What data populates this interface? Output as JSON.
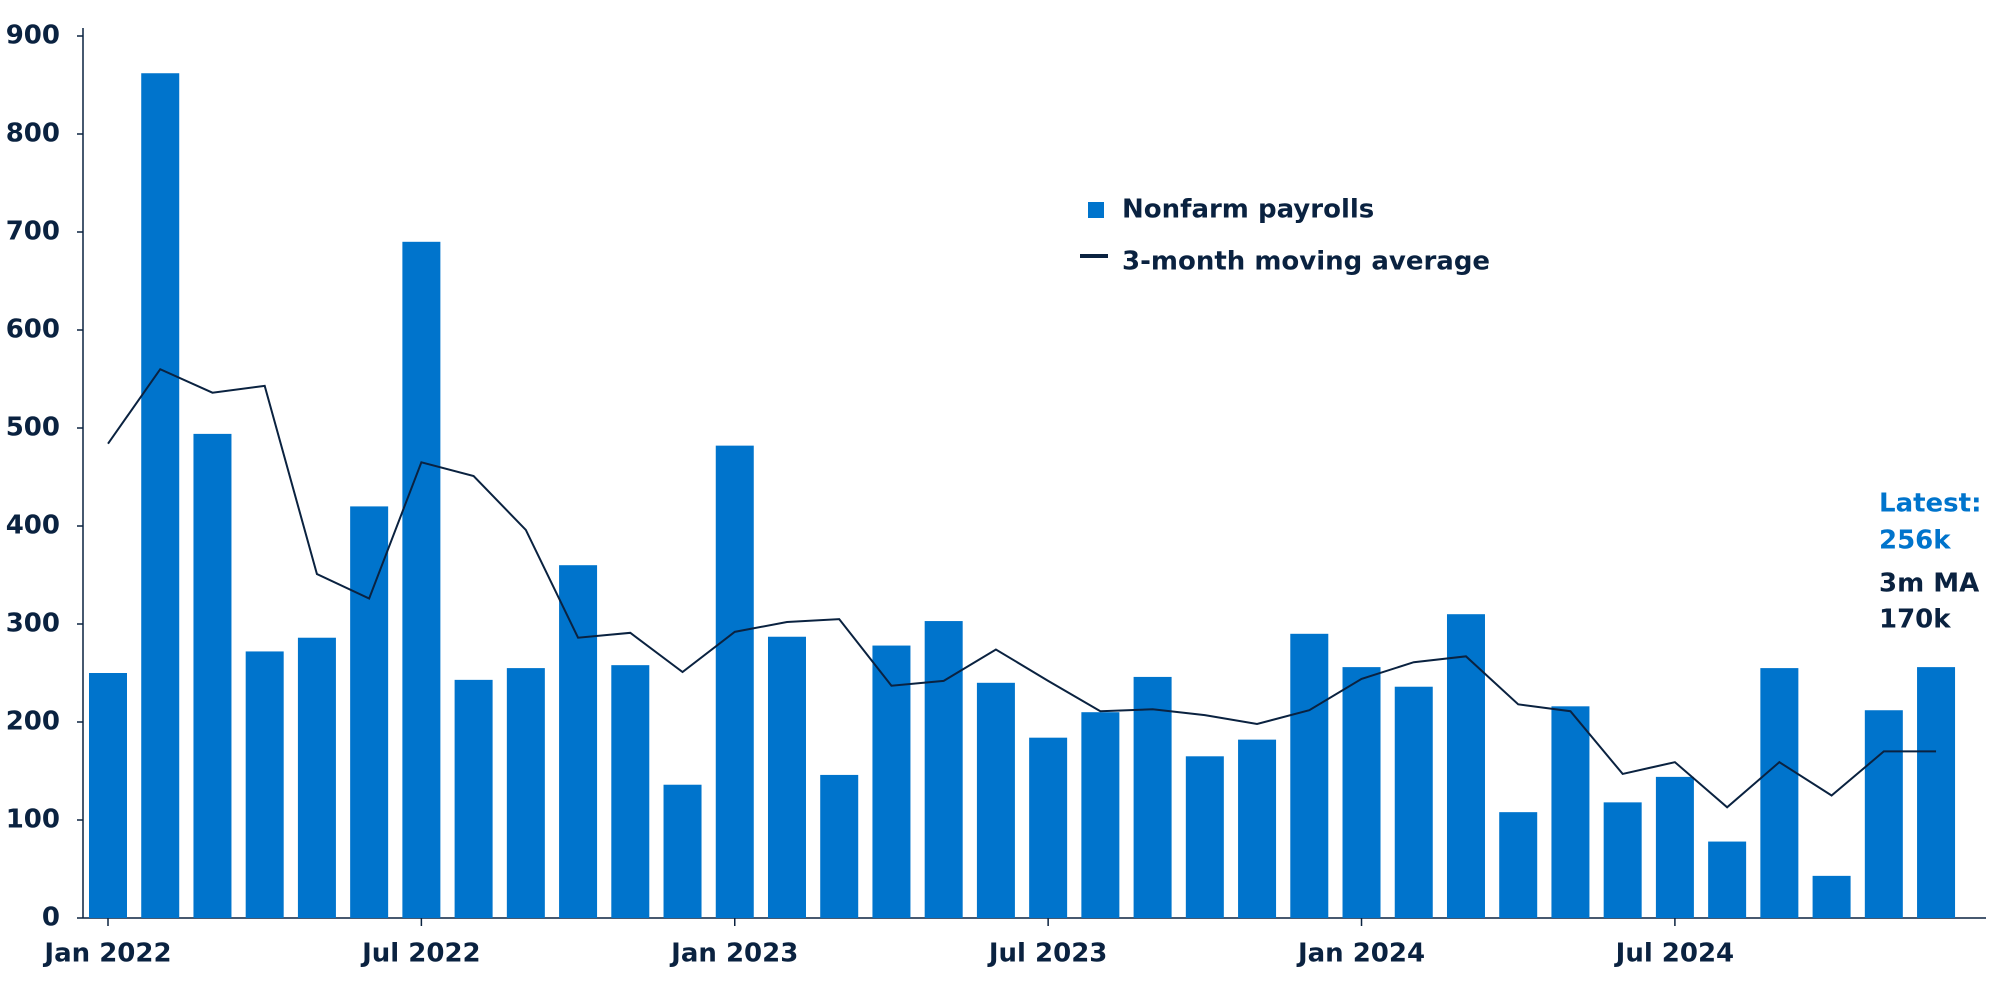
{
  "chart_data": {
    "type": "bar",
    "categories": [
      "Jan 2022",
      null,
      null,
      null,
      null,
      null,
      "Jul 2022",
      null,
      null,
      null,
      null,
      null,
      "Jan 2023",
      null,
      null,
      null,
      null,
      null,
      "Jul 2023",
      null,
      null,
      null,
      null,
      null,
      "Jan 2024",
      null,
      null,
      null,
      null,
      null,
      "Jul 2024",
      null,
      null,
      null,
      null,
      null
    ],
    "series": [
      {
        "name": "Nonfarm payrolls",
        "type": "bar",
        "color": "#0074cc",
        "values": [
          250,
          862,
          494,
          272,
          286,
          420,
          690,
          243,
          255,
          360,
          258,
          136,
          482,
          287,
          146,
          278,
          303,
          240,
          184,
          210,
          246,
          165,
          182,
          290,
          256,
          236,
          310,
          108,
          216,
          118,
          144,
          78,
          255,
          43,
          212,
          256
        ]
      },
      {
        "name": "3-month moving average",
        "type": "line",
        "color": "#0a2240",
        "values": [
          484,
          560,
          536,
          543,
          351,
          326,
          465,
          451,
          396,
          286,
          291,
          251,
          292,
          302,
          305,
          237,
          242,
          274,
          242,
          211,
          213,
          207,
          198,
          212,
          244,
          261,
          267,
          218,
          211,
          147,
          159,
          113,
          159,
          125,
          170,
          170
        ]
      }
    ],
    "ylim": [
      0,
      900
    ],
    "yticks": [
      0,
      100,
      200,
      300,
      400,
      500,
      600,
      700,
      800,
      900
    ],
    "annotations": [
      {
        "text": "Latest:",
        "color": "#0074cc"
      },
      {
        "text": "256k",
        "color": "#0074cc"
      },
      {
        "text": "3m MA",
        "color": "#0a2240"
      },
      {
        "text": "170k",
        "color": "#0a2240"
      }
    ]
  }
}
